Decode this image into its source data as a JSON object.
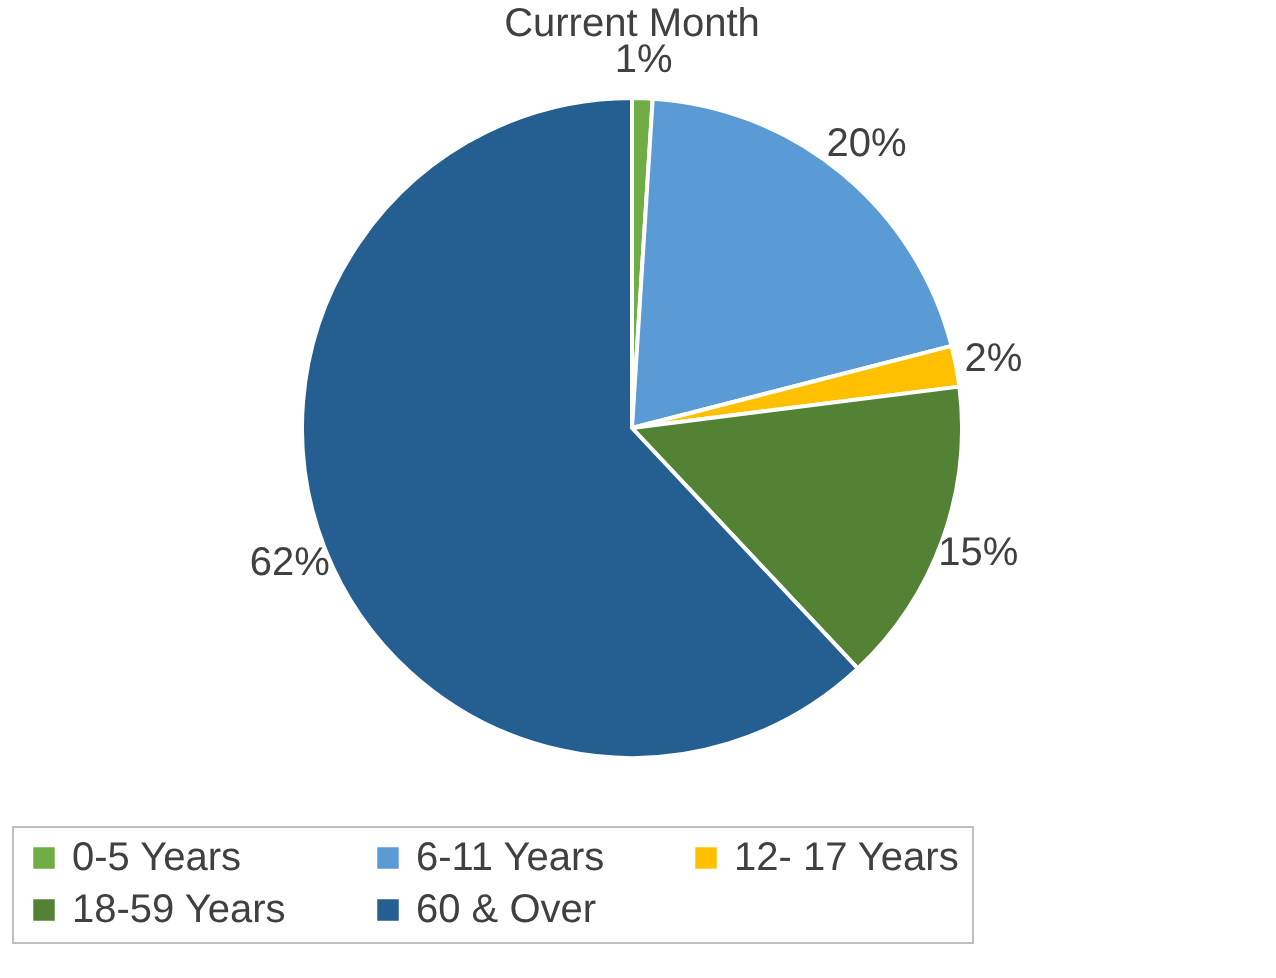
{
  "chart_data": {
    "type": "pie",
    "title": "Current Month",
    "categories": [
      "0-5 Years",
      "6-11 Years",
      "12- 17 Years",
      "18-59 Years",
      "60 & Over"
    ],
    "values": [
      1,
      20,
      2,
      15,
      62
    ],
    "colors": [
      "#70ad47",
      "#5b9bd5",
      "#ffc000",
      "#548235",
      "#255e91"
    ],
    "value_labels": [
      "1%",
      "20%",
      "2%",
      "15%",
      "62%"
    ],
    "legend": "bottom"
  }
}
